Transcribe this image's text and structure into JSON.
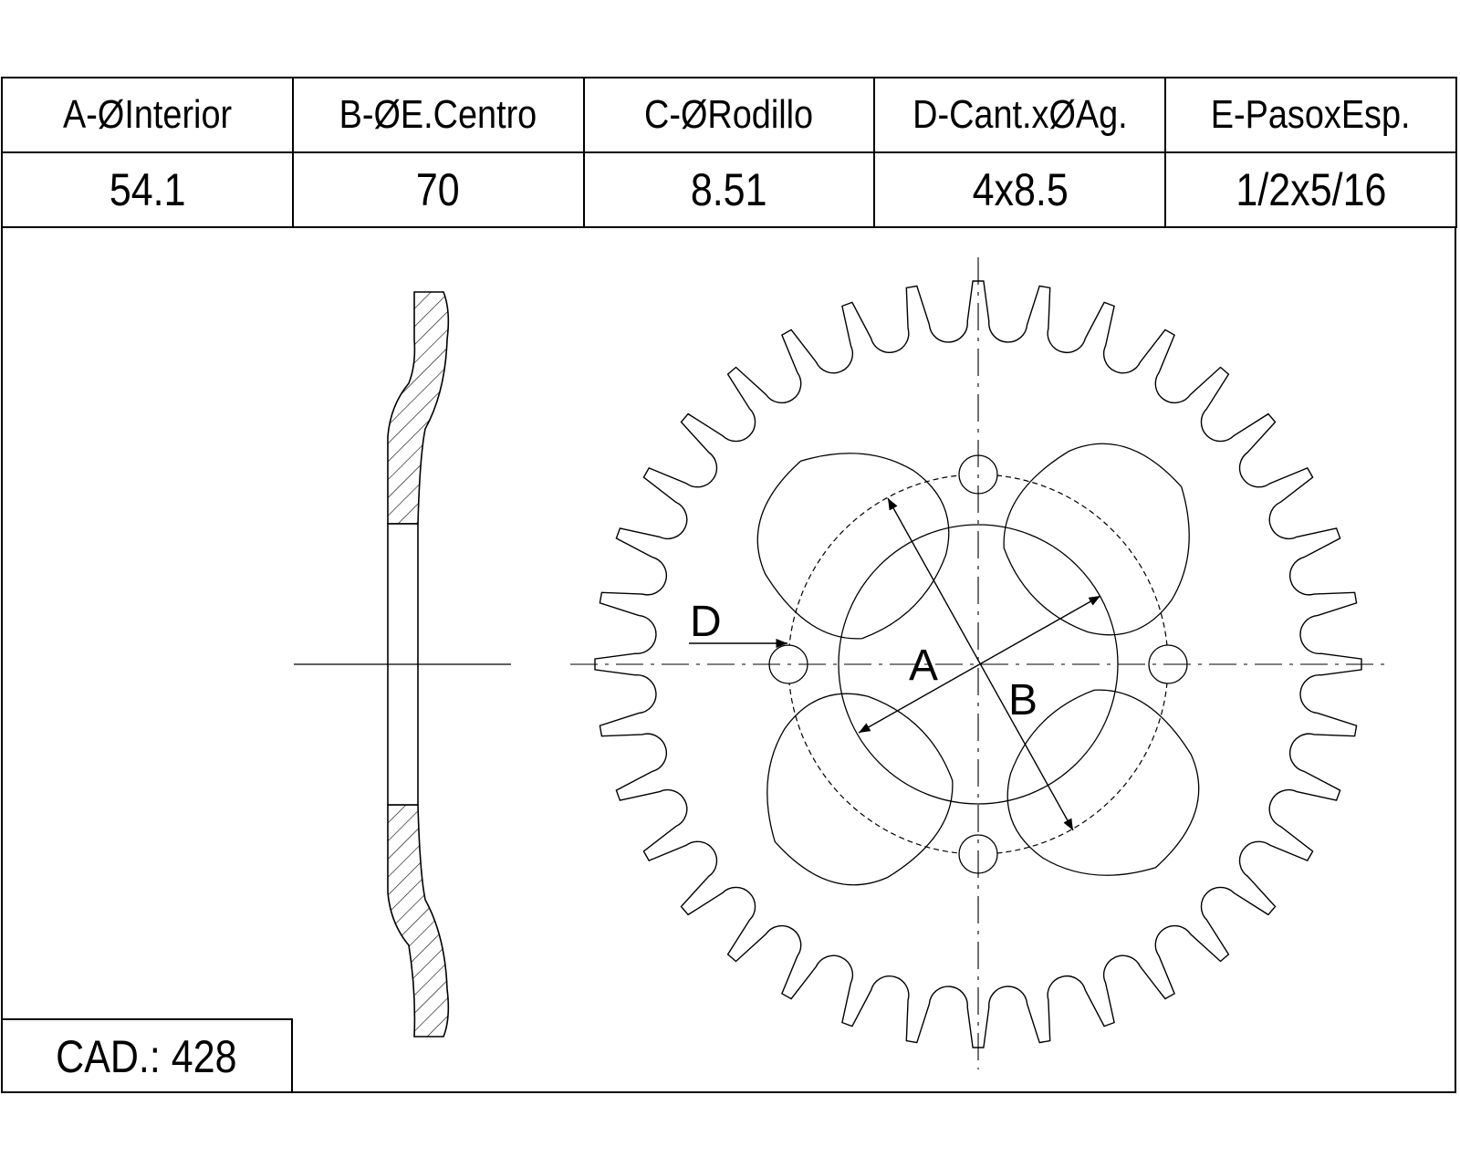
{
  "table": {
    "headers": [
      "A-ØInterior",
      "B-ØE.Centro",
      "C-ØRodillo",
      "D-Cant.xØAg.",
      "E-PasoxEsp."
    ],
    "values": [
      "54.1",
      "70",
      "8.51",
      "4x8.5",
      "1/2x5/16"
    ]
  },
  "cad_label": "CAD.: 428",
  "drawing": {
    "labels": {
      "a": "A",
      "b": "B",
      "d": "D"
    },
    "teeth": 36,
    "bolt_holes": 4,
    "lightening_holes": 4
  }
}
